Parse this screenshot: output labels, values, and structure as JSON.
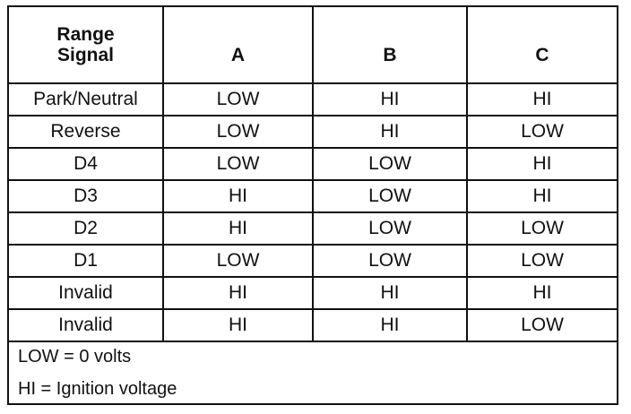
{
  "table": {
    "header": {
      "signal_line1": "Range",
      "signal_line2": "Signal",
      "columns": [
        "A",
        "B",
        "C"
      ]
    },
    "rows": [
      {
        "range": "Park/Neutral",
        "a": "LOW",
        "b": "HI",
        "c": "HI"
      },
      {
        "range": "Reverse",
        "a": "LOW",
        "b": "HI",
        "c": "LOW"
      },
      {
        "range": "D4",
        "a": "LOW",
        "b": "LOW",
        "c": "HI"
      },
      {
        "range": "D3",
        "a": "HI",
        "b": "LOW",
        "c": "HI"
      },
      {
        "range": "D2",
        "a": "HI",
        "b": "LOW",
        "c": "LOW"
      },
      {
        "range": "D1",
        "a": "LOW",
        "b": "LOW",
        "c": "LOW"
      },
      {
        "range": "Invalid",
        "a": "HI",
        "b": "HI",
        "c": "HI"
      },
      {
        "range": "Invalid",
        "a": "HI",
        "b": "HI",
        "c": "LOW"
      }
    ]
  },
  "notes": {
    "low": "LOW = 0 volts",
    "hi": "HI = Ignition voltage"
  }
}
